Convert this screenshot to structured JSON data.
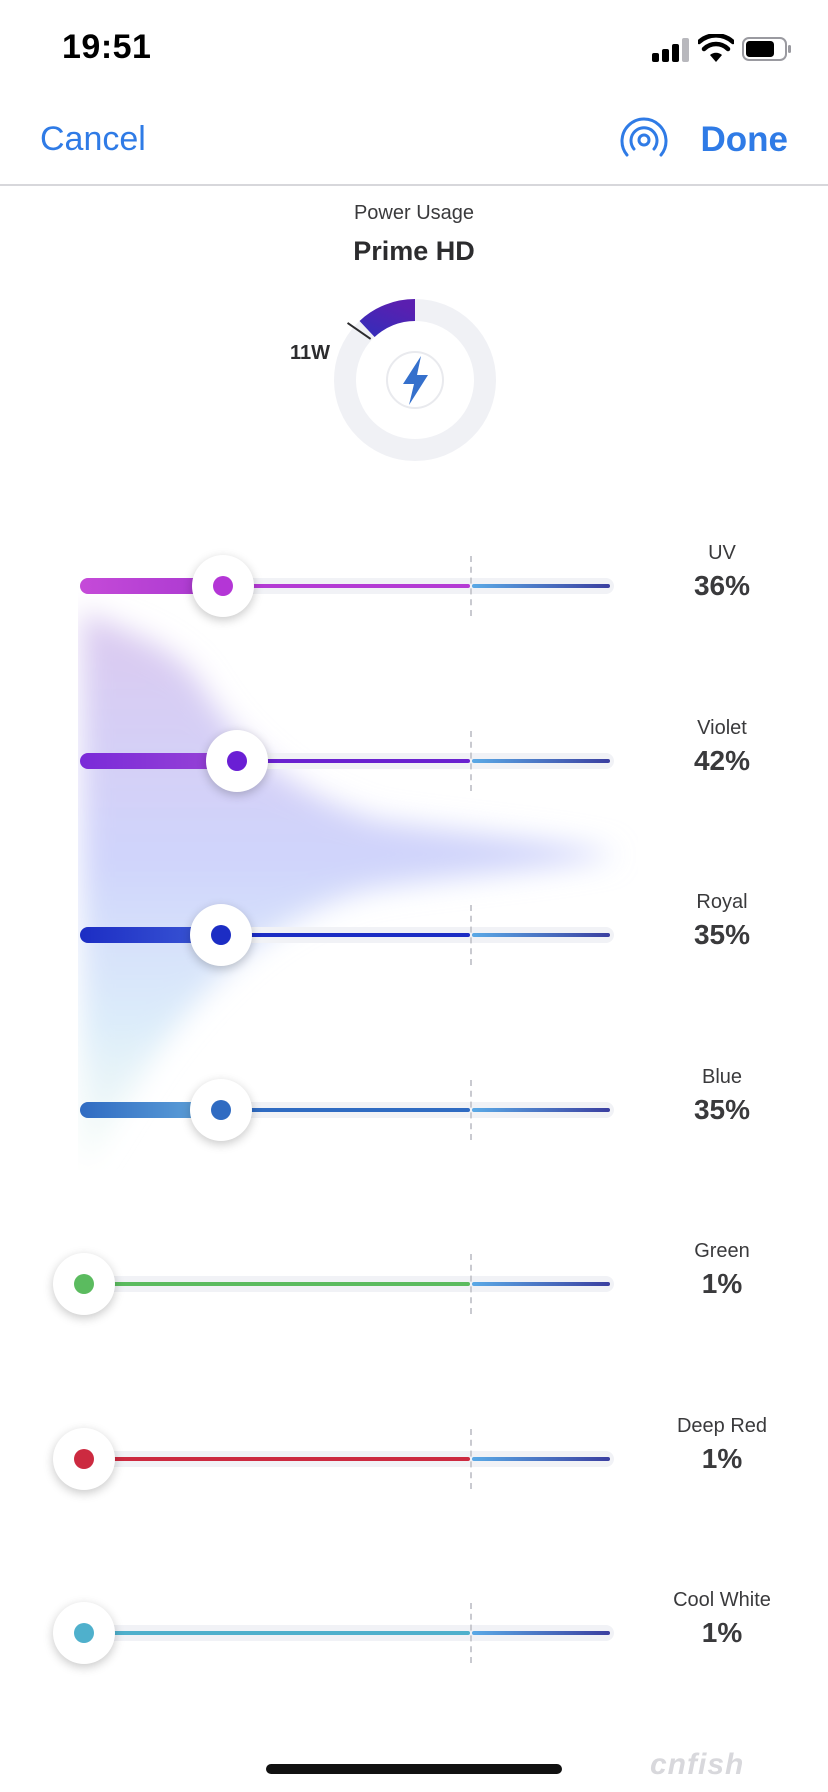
{
  "status_bar": {
    "time": "19:51"
  },
  "nav": {
    "cancel_label": "Cancel",
    "done_label": "Done",
    "broadcast_icon": "broadcast-icon"
  },
  "power": {
    "label": "Power Usage",
    "device": "Prime HD",
    "watts_label": "11W",
    "usage_fraction": 0.12,
    "icon": "lightning-bolt-icon"
  },
  "channels": [
    {
      "name": "UV",
      "value_label": "36%",
      "value": 36,
      "color": "#b436d6",
      "thick_start": "#c54ad8",
      "thick_end": "#a838d0",
      "line": "#b43bd4"
    },
    {
      "name": "Violet",
      "value_label": "42%",
      "value": 42,
      "color": "#6a1fd4",
      "thick_start": "#7a2ad8",
      "thick_end": "#9a45d6",
      "line": "#6a22d0"
    },
    {
      "name": "Royal",
      "value_label": "35%",
      "value": 35,
      "color": "#1c2dc4",
      "thick_start": "#1c2dc4",
      "thick_end": "#3d5ad6",
      "line": "#1c2dc4"
    },
    {
      "name": "Blue",
      "value_label": "35%",
      "value": 35,
      "color": "#2f6bc2",
      "thick_start": "#2f6bc2",
      "thick_end": "#64a8dc",
      "line": "#2f6bc2"
    },
    {
      "name": "Green",
      "value_label": "1%",
      "value": 1,
      "color": "#5bbb5f",
      "thick_start": "#5bbb5f",
      "thick_end": "#5bbb5f",
      "line": "#5bbb5f"
    },
    {
      "name": "Deep Red",
      "value_label": "1%",
      "value": 1,
      "color": "#cc2a40",
      "thick_start": "#cc2a40",
      "thick_end": "#cc2a40",
      "line": "#cc2a40"
    },
    {
      "name": "Cool White",
      "value_label": "1%",
      "value": 1,
      "color": "#4fb0cc",
      "thick_start": "#4fb0cc",
      "thick_end": "#4fb0cc",
      "line": "#4fb0cc"
    }
  ]
}
